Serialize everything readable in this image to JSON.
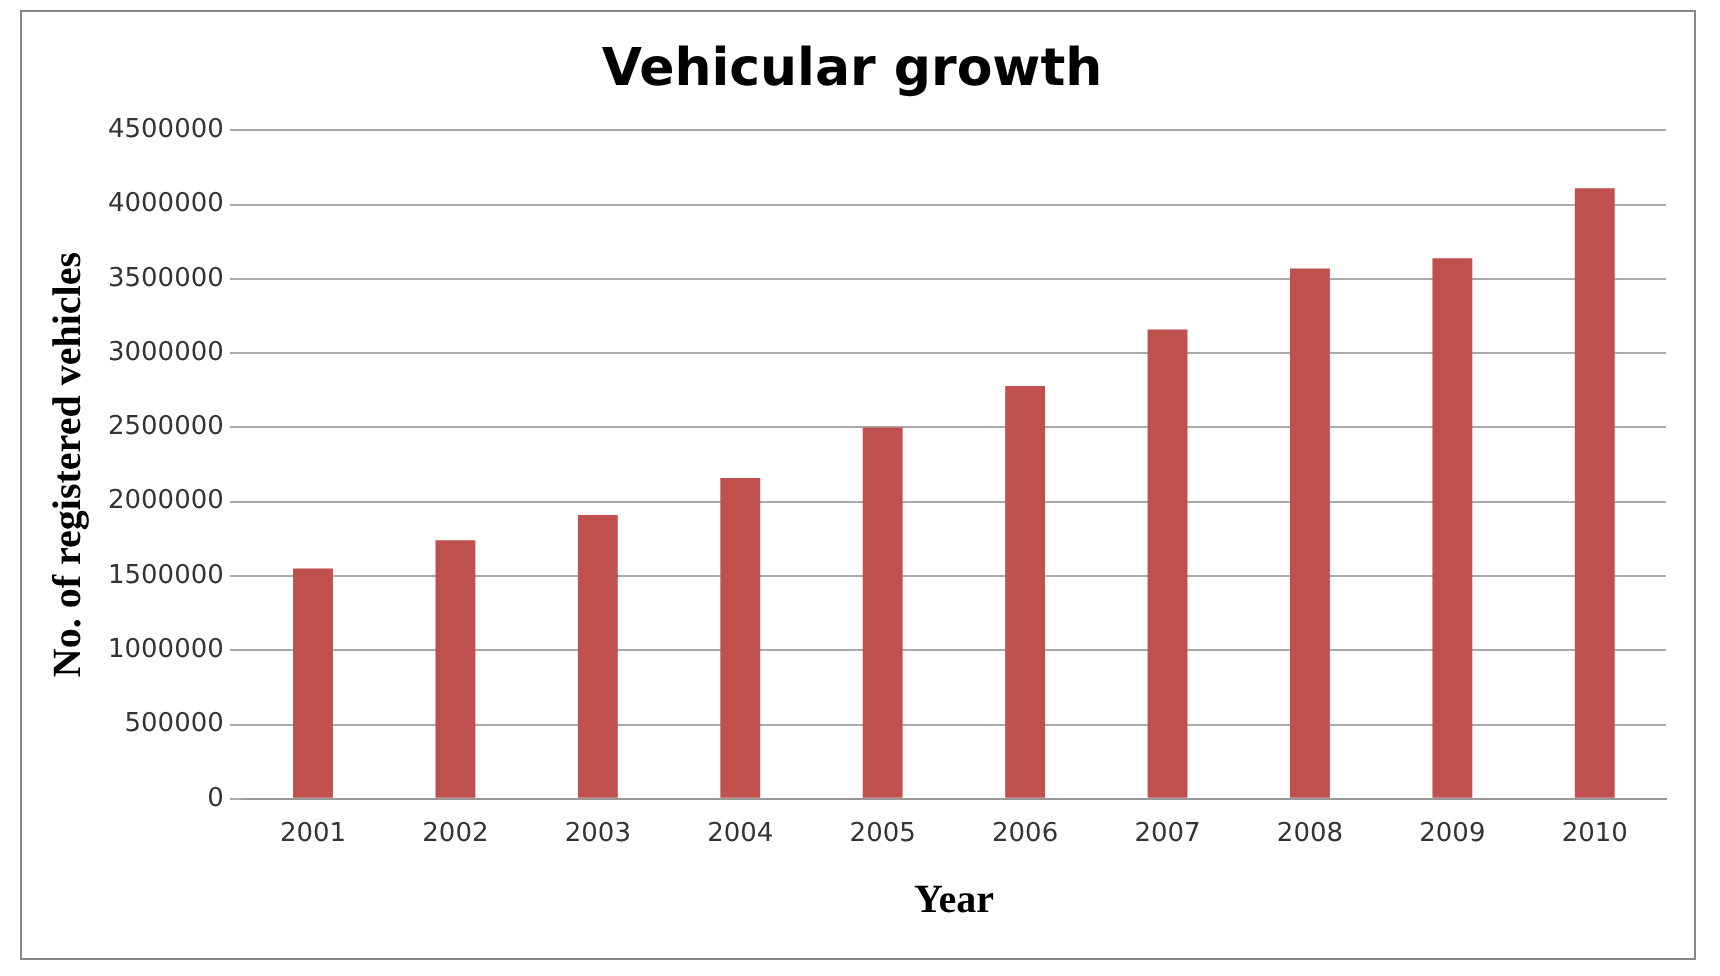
{
  "chart_data": {
    "type": "bar",
    "title": "Vehicular growth",
    "xlabel": "Year",
    "ylabel": "No. of registered vehicles",
    "categories": [
      "2001",
      "2002",
      "2003",
      "2004",
      "2005",
      "2006",
      "2007",
      "2008",
      "2009",
      "2010"
    ],
    "values": [
      1550000,
      1740000,
      1910000,
      2160000,
      2500000,
      2780000,
      3160000,
      3570000,
      3640000,
      4110000
    ],
    "color": "#c0504d",
    "ylim": [
      0,
      4500000
    ],
    "yticks": [
      0,
      500000,
      1000000,
      1500000,
      2000000,
      2500000,
      3000000,
      3500000,
      4000000,
      4500000
    ],
    "grid": "y",
    "legend": false
  }
}
